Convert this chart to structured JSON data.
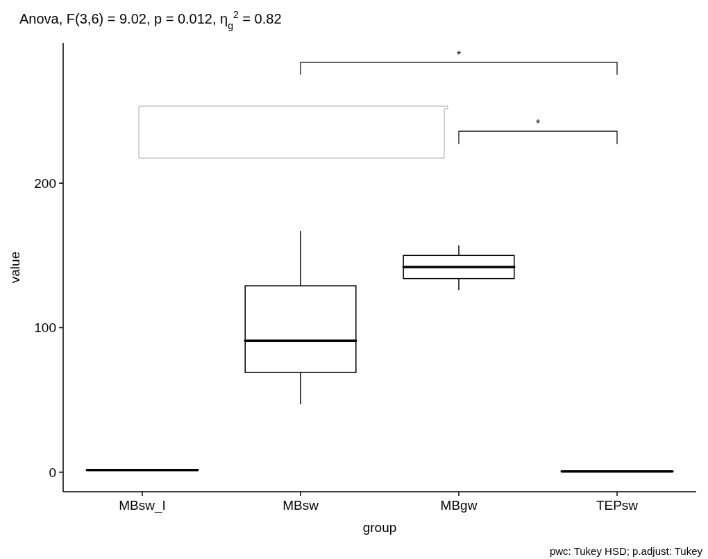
{
  "chart_data": {
    "type": "box",
    "title": "Anova, F(3,6) = 9.02, p = 0.012, η$_{g}$$^{2}$ = 0.82",
    "xlabel": "group",
    "ylabel": "value",
    "categories": [
      "MBsw_I",
      "MBsw",
      "MBgw",
      "TEPsw"
    ],
    "boxes": [
      {
        "low": 1.5,
        "q1": 1.5,
        "median": 1.5,
        "q3": 1.5,
        "high": 1.5
      },
      {
        "low": 47,
        "q1": 69,
        "median": 91,
        "q3": 129,
        "high": 167
      },
      {
        "low": 126,
        "q1": 134,
        "median": 142,
        "q3": 150,
        "high": 157
      },
      {
        "low": 0.5,
        "q1": 0.5,
        "median": 0.5,
        "q3": 0.5,
        "high": 0.5
      }
    ],
    "color": "#000000",
    "ylim": [
      -13.5,
      297
    ],
    "yticks": [
      0,
      100,
      200
    ],
    "grid": false,
    "annotations": [
      "*",
      "*",
      "pwc: Tukey HSD; p.adjust: Tukey"
    ]
  }
}
